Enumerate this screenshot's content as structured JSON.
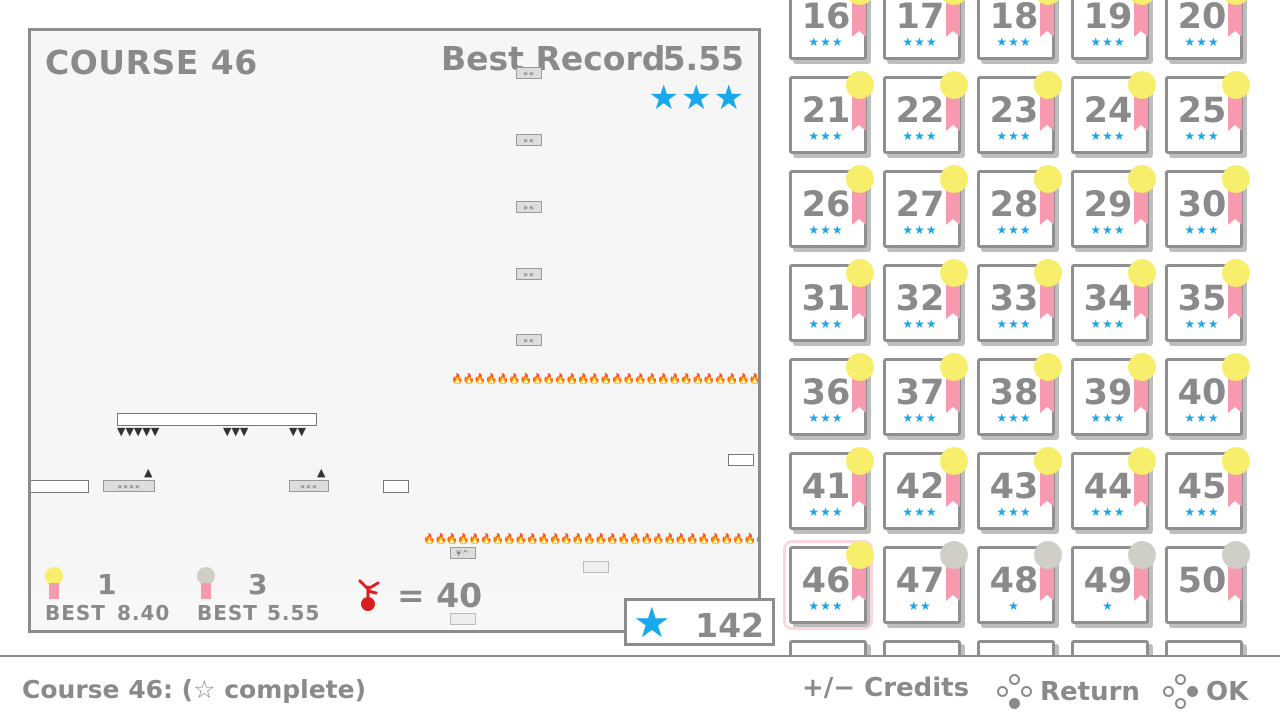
{
  "preview": {
    "course_title": "COURSE 46",
    "best_record_label": "Best Record",
    "best_record_value": "5.55",
    "record_stars": 3,
    "gold": {
      "count": "1",
      "best_label": "BEST",
      "best_value": "8.40",
      "color": "#f7ef6b"
    },
    "silver": {
      "count": "3",
      "best_label": "BEST",
      "best_value": "5.55",
      "color": "#cfcfc7"
    },
    "deaths_text": "= 40",
    "map_blocks": [
      "»«",
      "»«",
      "»«",
      "»«",
      "»«"
    ],
    "left_rail_label": "»»»»",
    "right_rail_label": "«««",
    "upper_lower_label": "¥^"
  },
  "total_stars": "142",
  "levels": [
    {
      "n": "16",
      "stars": "★★★",
      "medal": "gold"
    },
    {
      "n": "17",
      "stars": "★★★",
      "medal": "gold"
    },
    {
      "n": "18",
      "stars": "★★★",
      "medal": "gold"
    },
    {
      "n": "19",
      "stars": "★★★",
      "medal": "gold"
    },
    {
      "n": "20",
      "stars": "★★★",
      "medal": "gold"
    },
    {
      "n": "21",
      "stars": "★★★",
      "medal": "gold"
    },
    {
      "n": "22",
      "stars": "★★★",
      "medal": "gold"
    },
    {
      "n": "23",
      "stars": "★★★",
      "medal": "gold"
    },
    {
      "n": "24",
      "stars": "★★★",
      "medal": "gold"
    },
    {
      "n": "25",
      "stars": "★★★",
      "medal": "gold"
    },
    {
      "n": "26",
      "stars": "★★★",
      "medal": "gold"
    },
    {
      "n": "27",
      "stars": "★★★",
      "medal": "gold"
    },
    {
      "n": "28",
      "stars": "★★★",
      "medal": "gold"
    },
    {
      "n": "29",
      "stars": "★★★",
      "medal": "gold"
    },
    {
      "n": "30",
      "stars": "★★★",
      "medal": "gold"
    },
    {
      "n": "31",
      "stars": "★★★",
      "medal": "gold"
    },
    {
      "n": "32",
      "stars": "★★★",
      "medal": "gold"
    },
    {
      "n": "33",
      "stars": "★★★",
      "medal": "gold"
    },
    {
      "n": "34",
      "stars": "★★★",
      "medal": "gold"
    },
    {
      "n": "35",
      "stars": "★★★",
      "medal": "gold"
    },
    {
      "n": "36",
      "stars": "★★★",
      "medal": "gold"
    },
    {
      "n": "37",
      "stars": "★★★",
      "medal": "gold"
    },
    {
      "n": "38",
      "stars": "★★★",
      "medal": "gold"
    },
    {
      "n": "39",
      "stars": "★★★",
      "medal": "gold"
    },
    {
      "n": "40",
      "stars": "★★★",
      "medal": "gold"
    },
    {
      "n": "41",
      "stars": "★★★",
      "medal": "gold"
    },
    {
      "n": "42",
      "stars": "★★★",
      "medal": "gold"
    },
    {
      "n": "43",
      "stars": "★★★",
      "medal": "gold"
    },
    {
      "n": "44",
      "stars": "★★★",
      "medal": "gold"
    },
    {
      "n": "45",
      "stars": "★★★",
      "medal": "gold"
    },
    {
      "n": "46",
      "stars": "★★★",
      "medal": "gold",
      "selected": true
    },
    {
      "n": "47",
      "stars": "★★",
      "medal": "silver"
    },
    {
      "n": "48",
      "stars": "★",
      "medal": "silver"
    },
    {
      "n": "49",
      "stars": "★",
      "medal": "silver"
    },
    {
      "n": "50",
      "stars": "",
      "medal": "silver"
    },
    {
      "n": "",
      "stars": "",
      "medal": "none"
    },
    {
      "n": "",
      "stars": "",
      "medal": "none"
    },
    {
      "n": "",
      "stars": "",
      "medal": "none"
    },
    {
      "n": "",
      "stars": "",
      "medal": "none"
    },
    {
      "n": "",
      "stars": "",
      "medal": "none"
    }
  ],
  "colors": {
    "star": "#1aa7ec",
    "gold": "#f7ef6b",
    "silver": "#cfcfc7",
    "ribbon": "#f79ab0",
    "fire": "#e63b1c"
  },
  "bottom": {
    "status": "Course 46: (☆ complete)",
    "credits": "+/− Credits",
    "return_label": "Return",
    "ok_label": "OK"
  }
}
